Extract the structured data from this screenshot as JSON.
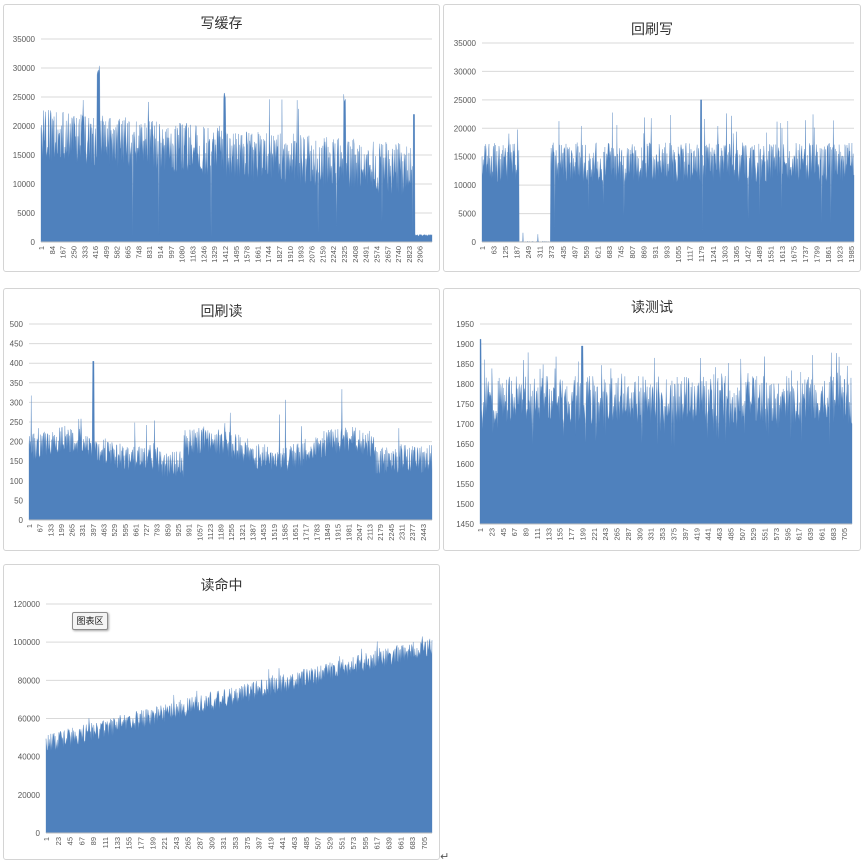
{
  "tooltip_label": "图表区",
  "colors": {
    "fill": "#4f81bd",
    "grid": "#d9d9d9",
    "axis": "#bfbfbf",
    "tick_text": "#595959"
  },
  "chart_data": [
    {
      "type": "area",
      "title": "写缓存",
      "ylim": [
        0,
        35000
      ],
      "yticks": [
        0,
        5000,
        10000,
        15000,
        20000,
        25000,
        30000,
        35000
      ],
      "x_count": 3000,
      "x_labels": [
        "1",
        "84",
        "167",
        "250",
        "333",
        "416",
        "499",
        "582",
        "665",
        "748",
        "831",
        "914",
        "997",
        "1080",
        "1163",
        "1246",
        "1329",
        "1412",
        "1495",
        "1578",
        "1661",
        "1744",
        "1827",
        "1910",
        "1993",
        "2076",
        "2159",
        "2242",
        "2325",
        "2408",
        "2491",
        "2574",
        "2657",
        "2740",
        "2823",
        "2906"
      ],
      "grid": true,
      "legend": "none",
      "series": [
        {
          "values_summary": "baseline ~18000 at start easing to ~12000, spikes to ~30000 near x 416 and ~25000 near x 1410 and x 2325, drops to ~1000 after x 2850 except a spike ~22000 near x 2860"
        }
      ]
    },
    {
      "type": "area",
      "title": "回刷写",
      "ylim": [
        0,
        35000
      ],
      "yticks": [
        0,
        5000,
        10000,
        15000,
        20000,
        25000,
        30000,
        35000
      ],
      "x_count": 2000,
      "x_labels": [
        "1",
        "63",
        "125",
        "187",
        "249",
        "311",
        "373",
        "435",
        "497",
        "559",
        "621",
        "683",
        "745",
        "807",
        "869",
        "931",
        "993",
        "1055",
        "1117",
        "1179",
        "1241",
        "1303",
        "1365",
        "1427",
        "1489",
        "1551",
        "1613",
        "1675",
        "1737",
        "1799",
        "1861",
        "1923",
        "1985"
      ],
      "grid": true,
      "legend": "none",
      "series": [
        {
          "values_summary": "~14000 with peaks to ~19000 for x 1-200, near 0 for x 200-370, then ~14000 with spikes to ~25000 near x 1179"
        }
      ]
    },
    {
      "type": "area",
      "title": "回刷读",
      "ylim": [
        0,
        500
      ],
      "yticks": [
        0,
        50,
        100,
        150,
        200,
        250,
        300,
        350,
        400,
        450,
        500
      ],
      "x_count": 2500,
      "x_labels": [
        "1",
        "67",
        "133",
        "199",
        "265",
        "331",
        "397",
        "463",
        "529",
        "595",
        "661",
        "727",
        "793",
        "859",
        "925",
        "991",
        "1057",
        "1123",
        "1189",
        "1255",
        "1321",
        "1387",
        "1453",
        "1519",
        "1585",
        "1651",
        "1717",
        "1783",
        "1849",
        "1915",
        "1981",
        "2047",
        "2113",
        "2179",
        "2245",
        "2311",
        "2377",
        "2443"
      ],
      "grid": true,
      "legend": "none",
      "series": [
        {
          "values_summary": "~180 baseline fluctuating 120-320, dip ~110 near x 880, spike ~410 near x 400"
        }
      ]
    },
    {
      "type": "area",
      "title": "读测试",
      "ylim": [
        1450,
        1950
      ],
      "yticks": [
        1450,
        1500,
        1550,
        1600,
        1650,
        1700,
        1750,
        1800,
        1850,
        1900,
        1950
      ],
      "x_count": 720,
      "x_labels": [
        "1",
        "23",
        "45",
        "67",
        "89",
        "111",
        "133",
        "155",
        "177",
        "199",
        "221",
        "243",
        "265",
        "287",
        "309",
        "331",
        "353",
        "375",
        "397",
        "419",
        "441",
        "463",
        "485",
        "507",
        "529",
        "551",
        "573",
        "595",
        "617",
        "639",
        "661",
        "683",
        "705"
      ],
      "grid": true,
      "legend": "none",
      "series": [
        {
          "values_summary": "~1760 baseline fluctuating 1650-1870, spike ~1910 near x 1 and ~1895 near x 199"
        }
      ]
    },
    {
      "type": "area",
      "title": "读命中",
      "ylim": [
        0,
        120000
      ],
      "yticks": [
        0,
        20000,
        40000,
        60000,
        80000,
        100000,
        120000
      ],
      "x_count": 720,
      "x_labels": [
        "1",
        "23",
        "45",
        "67",
        "89",
        "111",
        "133",
        "155",
        "177",
        "199",
        "221",
        "243",
        "265",
        "287",
        "309",
        "331",
        "353",
        "375",
        "397",
        "419",
        "441",
        "463",
        "485",
        "507",
        "529",
        "551",
        "573",
        "595",
        "617",
        "639",
        "661",
        "683",
        "705"
      ],
      "grid": true,
      "legend": "none",
      "series": [
        {
          "values_summary": "rises roughly linearly from ~47000 at x 1 to ~98000 at x 720 with noise +/-5000"
        }
      ]
    }
  ]
}
